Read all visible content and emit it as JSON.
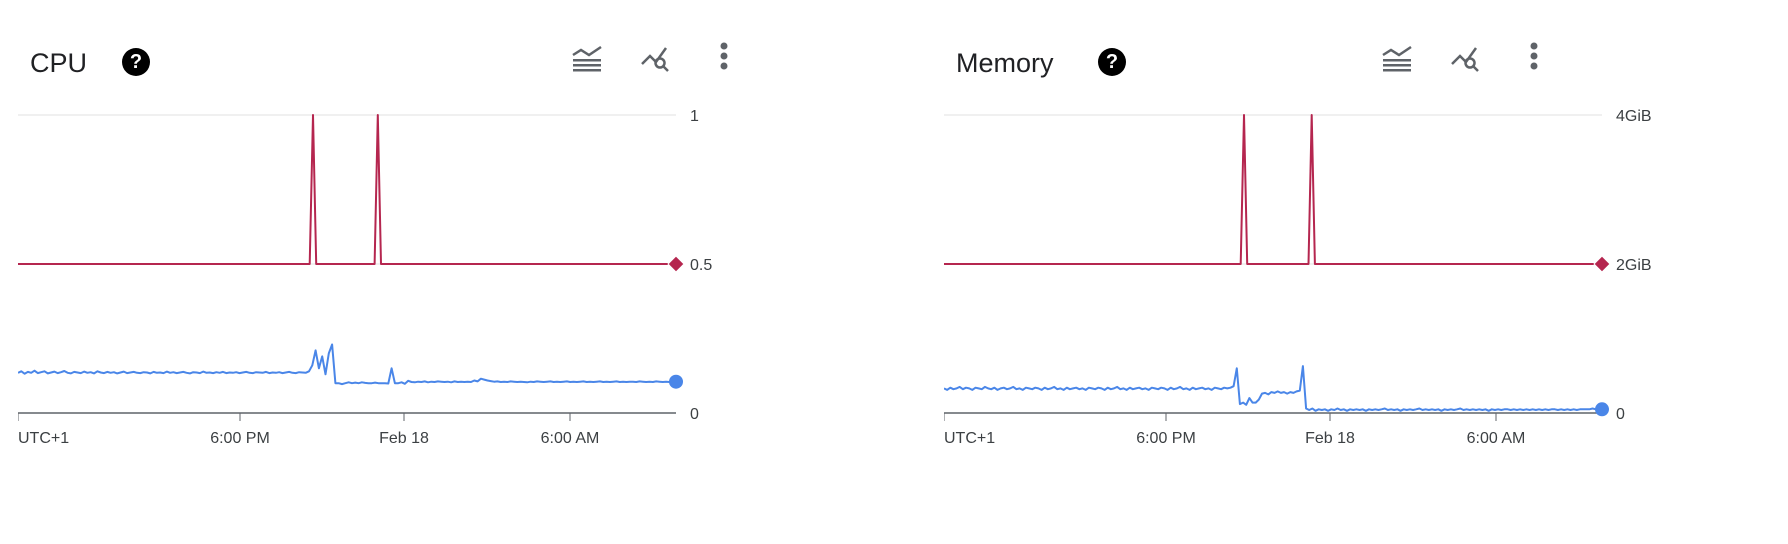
{
  "colors": {
    "series_a": "#b5264f",
    "series_b": "#4a86e8",
    "grid": "#e0e0e0",
    "axis": "#5f6368"
  },
  "chart_data": [
    {
      "type": "line",
      "title": "CPU",
      "help_icon": "help-circle-icon",
      "toolbar_icons": [
        "legend-toggle-icon",
        "explore-chart-icon",
        "more-vert-icon"
      ],
      "y_ticks": [
        "0",
        "0.5",
        "1"
      ],
      "ylim": [
        0,
        1
      ],
      "x_tick_labels": [
        "6:00 PM",
        "Feb 18",
        "6:00 AM"
      ],
      "timezone_label": "UTC+1",
      "grid": true,
      "series": [
        {
          "color": "#b5264f",
          "marker": "diamond",
          "values": [
            0.5,
            0.5,
            0.5,
            0.5,
            0.5,
            0.5,
            0.5,
            0.5,
            0.5,
            0.5,
            0.5,
            0.5,
            0.5,
            0.5,
            0.5,
            0.5,
            0.5,
            0.5,
            0.5,
            0.5,
            0.5,
            0.5,
            0.5,
            0.5,
            0.5,
            0.5,
            0.5,
            0.5,
            0.5,
            0.5,
            0.5,
            0.5,
            0.5,
            0.5,
            0.5,
            0.5,
            0.5,
            0.5,
            0.5,
            0.5,
            0.5,
            0.5,
            0.5,
            0.5,
            0.5,
            0.5,
            0.5,
            0.5,
            0.5,
            0.5,
            0.5,
            0.5,
            0.5,
            0.5,
            0.5,
            0.5,
            0.5,
            0.5,
            0.5,
            0.5,
            0.5,
            0.5,
            0.5,
            0.5,
            0.5,
            0.5,
            0.5,
            0.5,
            0.5,
            0.5,
            0.5,
            0.5,
            0.5,
            0.5,
            0.5,
            0.5,
            0.5,
            0.5,
            0.5,
            0.5,
            0.5,
            0.5,
            0.5,
            0.5,
            0.5,
            0.5,
            0.5,
            0.5,
            0.5,
            0.5,
            0.5,
            1.0,
            0.5,
            0.5,
            0.5,
            0.5,
            0.5,
            0.5,
            0.5,
            0.5,
            0.5,
            0.5,
            0.5,
            0.5,
            0.5,
            0.5,
            0.5,
            0.5,
            0.5,
            0.5,
            0.5,
            1.0,
            0.5,
            0.5,
            0.5,
            0.5,
            0.5,
            0.5,
            0.5,
            0.5,
            0.5,
            0.5,
            0.5,
            0.5,
            0.5,
            0.5,
            0.5,
            0.5,
            0.5,
            0.5,
            0.5,
            0.5,
            0.5,
            0.5,
            0.5,
            0.5,
            0.5,
            0.5,
            0.5,
            0.5,
            0.5,
            0.5,
            0.5,
            0.5,
            0.5,
            0.5,
            0.5,
            0.5,
            0.5,
            0.5,
            0.5,
            0.5,
            0.5,
            0.5,
            0.5,
            0.5,
            0.5,
            0.5,
            0.5,
            0.5,
            0.5,
            0.5,
            0.5,
            0.5,
            0.5,
            0.5,
            0.5,
            0.5,
            0.5,
            0.5,
            0.5,
            0.5,
            0.5,
            0.5,
            0.5,
            0.5,
            0.5,
            0.5,
            0.5,
            0.5,
            0.5,
            0.5,
            0.5,
            0.5,
            0.5,
            0.5,
            0.5,
            0.5,
            0.5,
            0.5,
            0.5,
            0.5,
            0.5,
            0.5,
            0.5,
            0.5,
            0.5,
            0.5,
            0.5,
            0.5,
            0.5,
            0.5,
            0.5,
            0.5
          ]
        },
        {
          "color": "#4a86e8",
          "marker": "circle",
          "values": [
            0.135,
            0.14,
            0.132,
            0.138,
            0.135,
            0.142,
            0.134,
            0.137,
            0.14,
            0.133,
            0.136,
            0.139,
            0.134,
            0.137,
            0.141,
            0.135,
            0.133,
            0.138,
            0.136,
            0.134,
            0.139,
            0.135,
            0.137,
            0.133,
            0.14,
            0.136,
            0.134,
            0.138,
            0.135,
            0.137,
            0.133,
            0.136,
            0.139,
            0.134,
            0.136,
            0.138,
            0.135,
            0.134,
            0.137,
            0.136,
            0.133,
            0.138,
            0.135,
            0.136,
            0.134,
            0.139,
            0.135,
            0.137,
            0.134,
            0.136,
            0.138,
            0.135,
            0.133,
            0.137,
            0.136,
            0.134,
            0.139,
            0.135,
            0.136,
            0.134,
            0.137,
            0.135,
            0.138,
            0.134,
            0.136,
            0.135,
            0.137,
            0.134,
            0.136,
            0.138,
            0.135,
            0.134,
            0.137,
            0.136,
            0.135,
            0.138,
            0.134,
            0.136,
            0.135,
            0.137,
            0.134,
            0.136,
            0.138,
            0.135,
            0.134,
            0.137,
            0.136,
            0.135,
            0.14,
            0.16,
            0.21,
            0.15,
            0.19,
            0.13,
            0.2,
            0.23,
            0.1,
            0.1,
            0.097,
            0.1,
            0.103,
            0.1,
            0.102,
            0.1,
            0.103,
            0.101,
            0.1,
            0.1,
            0.102,
            0.1,
            0.1,
            0.1,
            0.099,
            0.15,
            0.1,
            0.1,
            0.103,
            0.098,
            0.108,
            0.104,
            0.103,
            0.105,
            0.104,
            0.106,
            0.103,
            0.105,
            0.104,
            0.106,
            0.105,
            0.104,
            0.105,
            0.103,
            0.106,
            0.104,
            0.105,
            0.104,
            0.105,
            0.104,
            0.109,
            0.106,
            0.115,
            0.112,
            0.109,
            0.107,
            0.105,
            0.106,
            0.104,
            0.105,
            0.104,
            0.106,
            0.105,
            0.104,
            0.105,
            0.104,
            0.103,
            0.105,
            0.104,
            0.106,
            0.105,
            0.104,
            0.105,
            0.106,
            0.104,
            0.105,
            0.104,
            0.105,
            0.106,
            0.104,
            0.105,
            0.104,
            0.105,
            0.106,
            0.104,
            0.105,
            0.104,
            0.105,
            0.106,
            0.104,
            0.105,
            0.104,
            0.105,
            0.106,
            0.104,
            0.105,
            0.104,
            0.105,
            0.105,
            0.104,
            0.106,
            0.105,
            0.104,
            0.105,
            0.104,
            0.106,
            0.105,
            0.104,
            0.105,
            0.104,
            0.105,
            0.105
          ]
        }
      ]
    },
    {
      "type": "line",
      "title": "Memory",
      "help_icon": "help-circle-icon",
      "toolbar_icons": [
        "legend-toggle-icon",
        "explore-chart-icon",
        "more-vert-icon"
      ],
      "y_ticks": [
        "0",
        "2GiB",
        "4GiB"
      ],
      "ylim": [
        0,
        4
      ],
      "y_unit": "GiB",
      "x_tick_labels": [
        "6:00 PM",
        "Feb 18",
        "6:00 AM"
      ],
      "timezone_label": "UTC+1",
      "grid": true,
      "series": [
        {
          "color": "#b5264f",
          "marker": "diamond",
          "values": [
            2,
            2,
            2,
            2,
            2,
            2,
            2,
            2,
            2,
            2,
            2,
            2,
            2,
            2,
            2,
            2,
            2,
            2,
            2,
            2,
            2,
            2,
            2,
            2,
            2,
            2,
            2,
            2,
            2,
            2,
            2,
            2,
            2,
            2,
            2,
            2,
            2,
            2,
            2,
            2,
            2,
            2,
            2,
            2,
            2,
            2,
            2,
            2,
            2,
            2,
            2,
            2,
            2,
            2,
            2,
            2,
            2,
            2,
            2,
            2,
            2,
            2,
            2,
            2,
            2,
            2,
            2,
            2,
            2,
            2,
            2,
            2,
            2,
            2,
            2,
            2,
            2,
            2,
            2,
            2,
            2,
            2,
            2,
            2,
            2,
            2,
            2,
            2,
            2,
            2,
            2,
            2,
            2,
            4,
            2,
            2,
            2,
            2,
            2,
            2,
            2,
            2,
            2,
            2,
            2,
            2,
            2,
            2,
            2,
            2,
            2,
            2,
            2,
            2,
            4,
            2,
            2,
            2,
            2,
            2,
            2,
            2,
            2,
            2,
            2,
            2,
            2,
            2,
            2,
            2,
            2,
            2,
            2,
            2,
            2,
            2,
            2,
            2,
            2,
            2,
            2,
            2,
            2,
            2,
            2,
            2,
            2,
            2,
            2,
            2,
            2,
            2,
            2,
            2,
            2,
            2,
            2,
            2,
            2,
            2,
            2,
            2,
            2,
            2,
            2,
            2,
            2,
            2,
            2,
            2,
            2,
            2,
            2,
            2,
            2,
            2,
            2,
            2,
            2,
            2,
            2,
            2,
            2,
            2,
            2,
            2,
            2,
            2,
            2,
            2,
            2,
            2,
            2,
            2,
            2,
            2,
            2,
            2,
            2,
            2,
            2,
            2,
            2,
            2,
            2
          ]
        },
        {
          "color": "#4a86e8",
          "marker": "circle",
          "values": [
            0.33,
            0.31,
            0.34,
            0.32,
            0.33,
            0.35,
            0.32,
            0.34,
            0.33,
            0.31,
            0.34,
            0.33,
            0.32,
            0.35,
            0.33,
            0.32,
            0.34,
            0.31,
            0.33,
            0.34,
            0.32,
            0.33,
            0.35,
            0.32,
            0.33,
            0.31,
            0.34,
            0.33,
            0.32,
            0.34,
            0.33,
            0.31,
            0.34,
            0.32,
            0.33,
            0.35,
            0.32,
            0.33,
            0.31,
            0.34,
            0.32,
            0.33,
            0.34,
            0.32,
            0.33,
            0.31,
            0.34,
            0.33,
            0.32,
            0.34,
            0.33,
            0.31,
            0.34,
            0.32,
            0.33,
            0.35,
            0.32,
            0.33,
            0.31,
            0.34,
            0.32,
            0.33,
            0.34,
            0.32,
            0.33,
            0.31,
            0.34,
            0.33,
            0.32,
            0.34,
            0.33,
            0.31,
            0.34,
            0.32,
            0.33,
            0.35,
            0.32,
            0.33,
            0.31,
            0.34,
            0.32,
            0.33,
            0.34,
            0.32,
            0.33,
            0.31,
            0.34,
            0.33,
            0.32,
            0.34,
            0.33,
            0.34,
            0.36,
            0.6,
            0.12,
            0.14,
            0.11,
            0.2,
            0.14,
            0.14,
            0.18,
            0.26,
            0.27,
            0.25,
            0.28,
            0.27,
            0.29,
            0.27,
            0.28,
            0.26,
            0.28,
            0.27,
            0.29,
            0.3,
            0.63,
            0.06,
            0.04,
            0.06,
            0.03,
            0.05,
            0.04,
            0.05,
            0.03,
            0.05,
            0.04,
            0.06,
            0.04,
            0.05,
            0.03,
            0.05,
            0.04,
            0.05,
            0.04,
            0.05,
            0.03,
            0.05,
            0.04,
            0.05,
            0.04,
            0.05,
            0.06,
            0.04,
            0.05,
            0.04,
            0.05,
            0.03,
            0.05,
            0.04,
            0.05,
            0.04,
            0.05,
            0.06,
            0.04,
            0.05,
            0.04,
            0.05,
            0.04,
            0.05,
            0.03,
            0.05,
            0.04,
            0.05,
            0.04,
            0.05,
            0.06,
            0.04,
            0.05,
            0.04,
            0.05,
            0.04,
            0.05,
            0.04,
            0.05,
            0.03,
            0.05,
            0.04,
            0.05,
            0.04,
            0.05,
            0.05,
            0.04,
            0.05,
            0.04,
            0.05,
            0.04,
            0.05,
            0.04,
            0.05,
            0.04,
            0.05,
            0.04,
            0.05,
            0.04,
            0.05,
            0.05,
            0.04,
            0.05,
            0.04,
            0.05,
            0.04,
            0.05,
            0.04,
            0.05,
            0.05,
            0.05,
            0.05,
            0.06,
            0.05,
            0.05,
            0.05
          ]
        }
      ]
    }
  ]
}
